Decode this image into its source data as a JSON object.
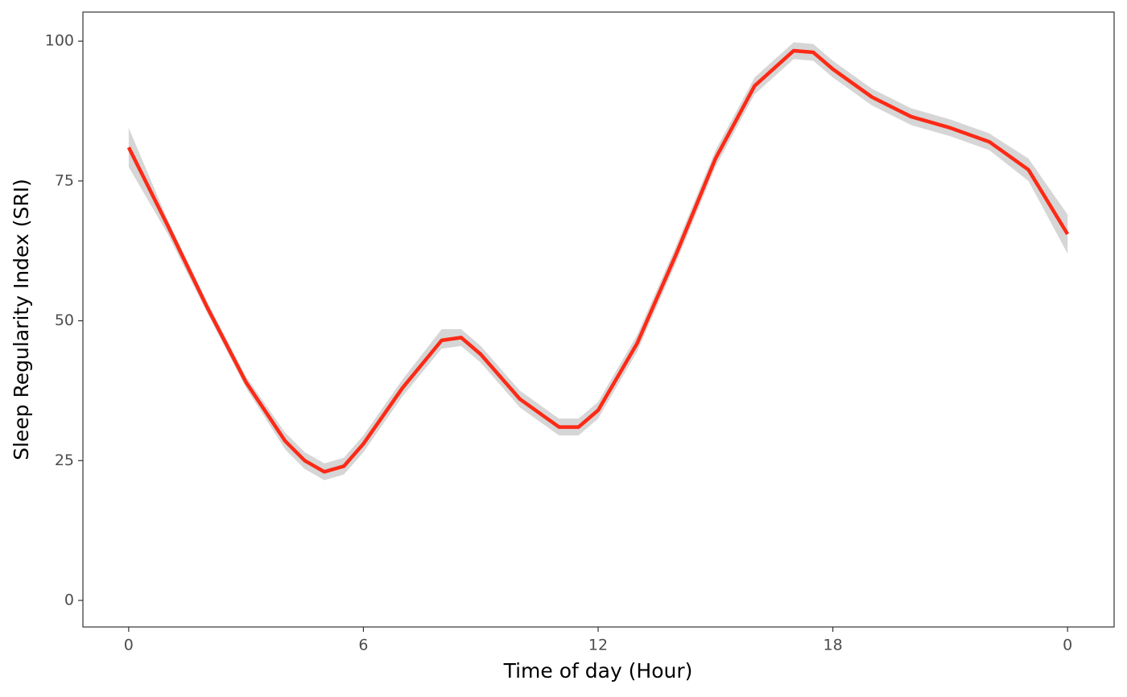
{
  "chart_data": {
    "type": "line",
    "x_label": "Time of day (Hour)",
    "y_label": "Sleep Regularity Index (SRI)",
    "x": [
      0,
      1,
      2,
      3,
      4,
      4.5,
      5,
      5.5,
      6,
      7,
      8,
      8.5,
      9,
      10,
      11,
      11.5,
      12,
      13,
      14,
      15,
      16,
      17,
      17.5,
      18,
      19,
      20,
      21,
      22,
      23,
      24
    ],
    "series": [
      {
        "color": "#fc2a16",
        "band_color": "#d6d6d6",
        "values": [
          81,
          67,
          52.5,
          39,
          28.5,
          25,
          23,
          24,
          28,
          38,
          46.5,
          47,
          44,
          36,
          31,
          31,
          34,
          46,
          62,
          79,
          92,
          98.3,
          98,
          95,
          90,
          86.5,
          84.5,
          82,
          77,
          65.5
        ],
        "lower": [
          77.5,
          65.5,
          51.5,
          38,
          27,
          23.5,
          21.5,
          22.5,
          26.5,
          36.5,
          45,
          45.5,
          42.5,
          34.5,
          29.5,
          29.5,
          32.5,
          44.5,
          60.5,
          77.5,
          90.5,
          96.8,
          96.5,
          93.5,
          88.5,
          85,
          83,
          80.5,
          75,
          62
        ],
        "upper": [
          84.5,
          68,
          53.5,
          40,
          30,
          26.5,
          24.5,
          25.5,
          29.5,
          39.5,
          48.5,
          48.5,
          45.5,
          37.5,
          32.5,
          32.5,
          35.5,
          47.5,
          63.5,
          80.5,
          93.5,
          99.8,
          99.5,
          96.5,
          91.5,
          88,
          86,
          83.5,
          79,
          69
        ]
      }
    ],
    "xlim": [
      -1.17,
      25.19
    ],
    "ylim": [
      -4.75,
      105.2
    ],
    "xticks": [
      0,
      6,
      12,
      18,
      {
        "value": 24,
        "label": "0"
      }
    ],
    "yticks": [
      0,
      25,
      50,
      75,
      100
    ]
  }
}
